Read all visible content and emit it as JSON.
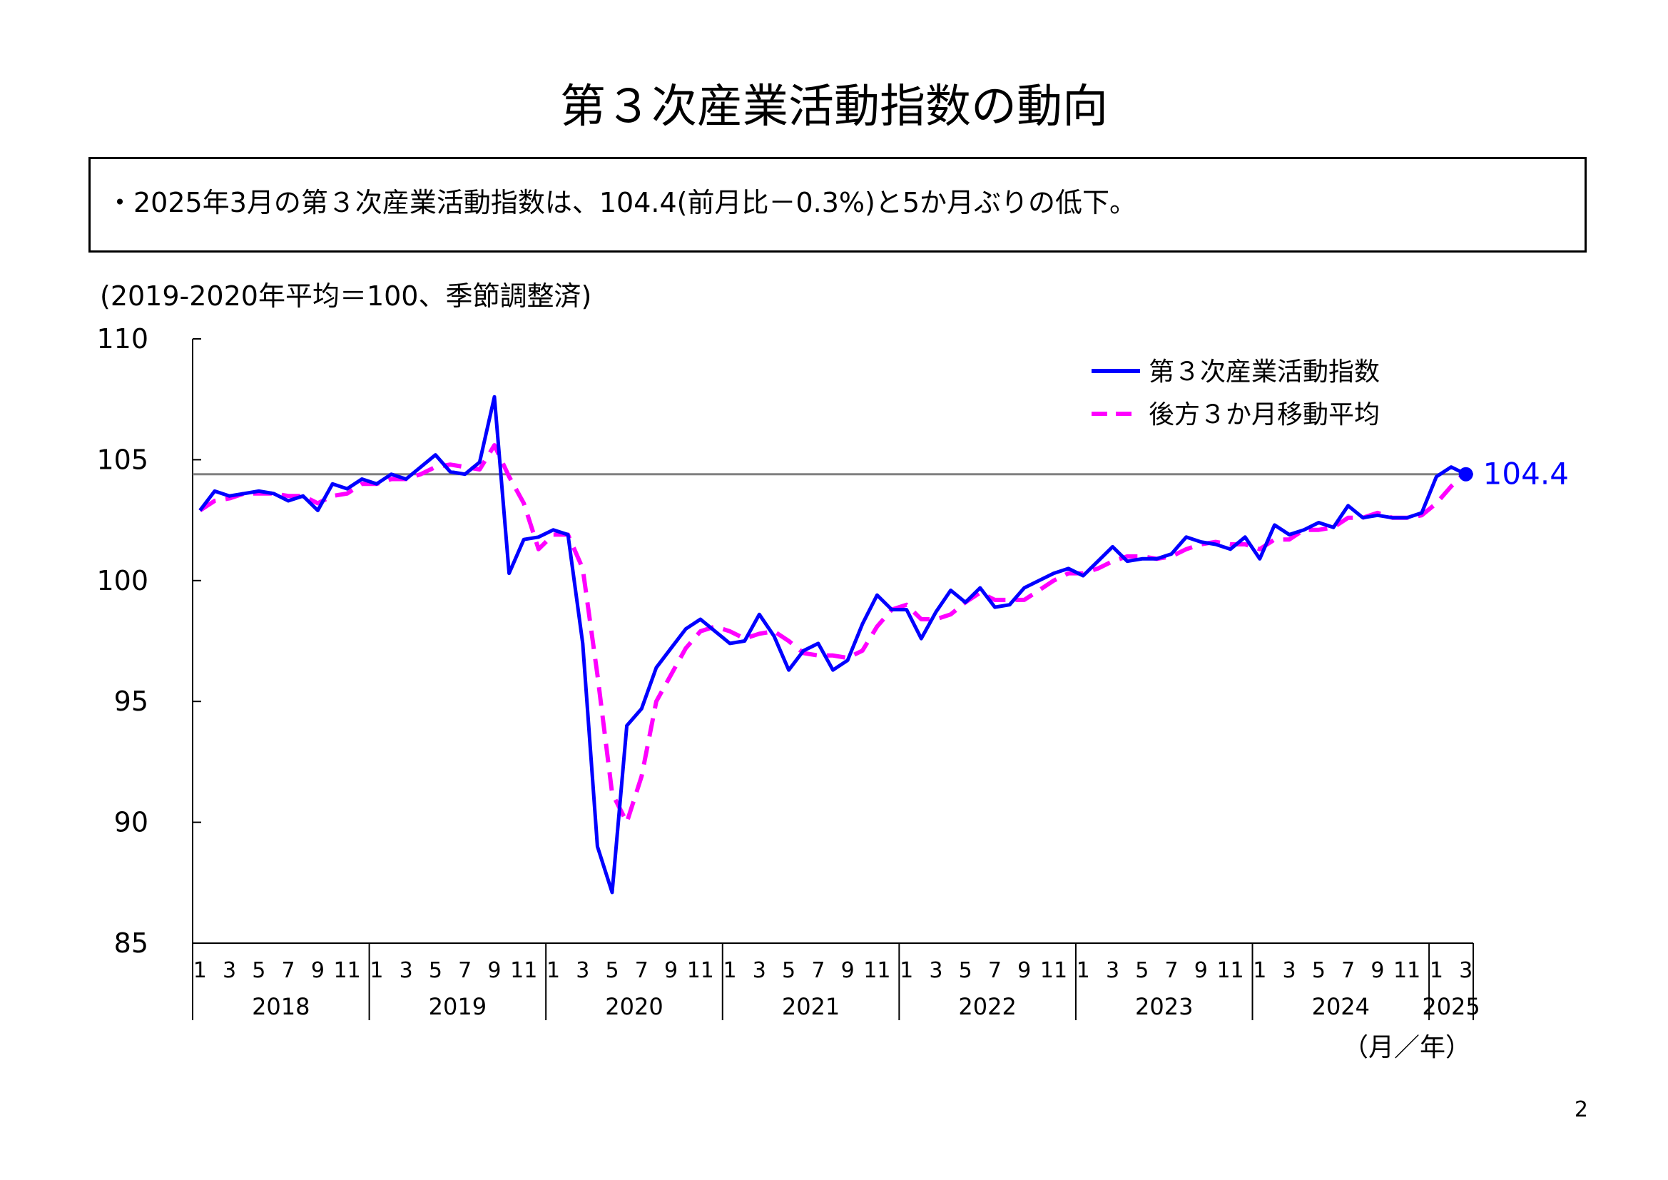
{
  "page": {
    "title": "第３次産業活動指数の動向",
    "summary": "・2025年3月の第３次産業活動指数は、104.4(前月比－0.3%)と5か月ぶりの低下。",
    "page_number": "2"
  },
  "chart_data": {
    "type": "line",
    "note": "(2019-2020年平均＝100、季節調整済)",
    "xlabel": "（月／年）",
    "ylim": [
      85,
      110
    ],
    "yticks": [
      85,
      90,
      95,
      100,
      105,
      110
    ],
    "grid": false,
    "legend_position": "top-right",
    "years": [
      "2018",
      "2019",
      "2020",
      "2021",
      "2022",
      "2023",
      "2024",
      "2025"
    ],
    "month_tick_labels": [
      "1",
      "3",
      "5",
      "7",
      "9",
      "11"
    ],
    "month_tick_labels_last_year": [
      "1",
      "3"
    ],
    "reference_line": 104.4,
    "last_value_label": "104.4",
    "series": [
      {
        "name": "第３次産業活動指数",
        "color": "#0000ff",
        "style": "solid",
        "values": [
          102.9,
          103.7,
          103.5,
          103.6,
          103.7,
          103.6,
          103.3,
          103.5,
          102.9,
          104.0,
          103.8,
          104.2,
          104.0,
          104.4,
          104.2,
          104.7,
          105.2,
          104.5,
          104.4,
          104.9,
          107.6,
          100.3,
          101.7,
          101.8,
          102.1,
          101.9,
          97.4,
          89.0,
          87.1,
          94.0,
          94.7,
          96.4,
          97.2,
          98.0,
          98.4,
          97.9,
          97.4,
          97.5,
          98.6,
          97.7,
          96.3,
          97.1,
          97.4,
          96.3,
          96.7,
          98.2,
          99.4,
          98.8,
          98.8,
          97.6,
          98.7,
          99.6,
          99.1,
          99.7,
          98.9,
          99.0,
          99.7,
          100.0,
          100.3,
          100.5,
          100.2,
          100.8,
          101.4,
          100.8,
          100.9,
          100.9,
          101.1,
          101.8,
          101.6,
          101.5,
          101.3,
          101.8,
          100.9,
          102.3,
          101.9,
          102.1,
          102.4,
          102.2,
          103.1,
          102.6,
          102.7,
          102.6,
          102.6,
          102.8,
          104.3,
          104.7,
          104.4
        ]
      },
      {
        "name": "後方３か月移動平均",
        "color": "#ff00ff",
        "style": "dashed",
        "values": [
          102.9,
          103.3,
          103.4,
          103.6,
          103.6,
          103.6,
          103.5,
          103.5,
          103.2,
          103.5,
          103.6,
          104.0,
          104.0,
          104.2,
          104.2,
          104.4,
          104.7,
          104.8,
          104.7,
          104.6,
          105.6,
          104.3,
          103.2,
          101.3,
          101.9,
          101.9,
          100.5,
          96.1,
          91.2,
          90.0,
          91.9,
          95.0,
          96.1,
          97.2,
          97.9,
          98.1,
          97.9,
          97.6,
          97.8,
          97.9,
          97.5,
          97.0,
          96.9,
          96.9,
          96.8,
          97.1,
          98.1,
          98.8,
          99.0,
          98.4,
          98.4,
          98.6,
          99.1,
          99.5,
          99.2,
          99.2,
          99.2,
          99.6,
          100.0,
          100.3,
          100.3,
          100.5,
          100.8,
          101.0,
          101.0,
          100.9,
          101.0,
          101.3,
          101.5,
          101.6,
          101.5,
          101.5,
          101.3,
          101.7,
          101.7,
          102.1,
          102.1,
          102.2,
          102.6,
          102.6,
          102.8,
          102.6,
          102.6,
          102.7,
          103.2,
          103.9,
          104.5
        ]
      }
    ]
  }
}
